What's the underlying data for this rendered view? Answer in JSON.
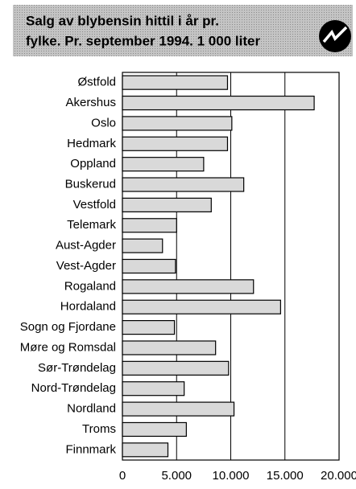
{
  "chart_data": {
    "type": "bar",
    "orientation": "horizontal",
    "title": [
      "Salg av blybensin hittil i år pr.",
      "fylke. Pr. september 1994. 1 000 liter"
    ],
    "categories": [
      "Østfold",
      "Akershus",
      "Oslo",
      "Hedmark",
      "Oppland",
      "Buskerud",
      "Vestfold",
      "Telemark",
      "Aust-Agder",
      "Vest-Agder",
      "Rogaland",
      "Hordaland",
      "Sogn og Fjordane",
      "Møre og Romsdal",
      "Sør-Trøndelag",
      "Nord-Trøndelag",
      "Nordland",
      "Troms",
      "Finnmark"
    ],
    "values": [
      9700,
      17700,
      10100,
      9700,
      7500,
      11200,
      8200,
      5000,
      3700,
      4900,
      12100,
      14600,
      4800,
      8600,
      9800,
      5700,
      10300,
      5900,
      4200
    ],
    "color": "#d9d9d9",
    "xlim": [
      0,
      20000
    ],
    "xticks": [
      0,
      {
        "value": 5000,
        "label": "5.000"
      },
      {
        "value": 10000,
        "label": "10.000"
      },
      {
        "value": 15000,
        "label": "15.000"
      },
      {
        "value": 20000,
        "label": "20.000"
      }
    ],
    "grid": true
  }
}
